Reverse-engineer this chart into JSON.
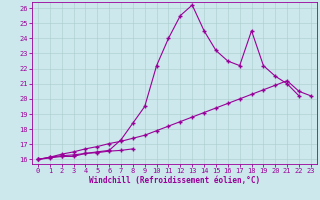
{
  "xlabel": "Windchill (Refroidissement éolien,°C)",
  "bg_color": "#cce8ec",
  "line_color": "#990099",
  "xlim": [
    -0.5,
    23.5
  ],
  "ylim": [
    15.7,
    26.4
  ],
  "xticks": [
    0,
    1,
    2,
    3,
    4,
    5,
    6,
    7,
    8,
    9,
    10,
    11,
    12,
    13,
    14,
    15,
    16,
    17,
    18,
    19,
    20,
    21,
    22,
    23
  ],
  "yticks": [
    16,
    17,
    18,
    19,
    20,
    21,
    22,
    23,
    24,
    25,
    26
  ],
  "series1_x": [
    0,
    1,
    2,
    3,
    4,
    5,
    6,
    7,
    8,
    9,
    10,
    11,
    12,
    13,
    14,
    15,
    16,
    17,
    18,
    19,
    20,
    21,
    22
  ],
  "series1_y": [
    16.0,
    16.1,
    16.2,
    16.2,
    16.4,
    16.5,
    16.6,
    17.3,
    18.4,
    19.5,
    22.2,
    24.0,
    25.5,
    26.2,
    24.5,
    23.2,
    22.5,
    22.2,
    24.5,
    22.2,
    21.5,
    21.0,
    20.2
  ],
  "series2_x": [
    0,
    1,
    2,
    3,
    4,
    5,
    6,
    7,
    8
  ],
  "series2_y": [
    16.0,
    16.15,
    16.25,
    16.3,
    16.4,
    16.45,
    16.55,
    16.6,
    16.7
  ],
  "series3_x": [
    0,
    1,
    2,
    3,
    4,
    5,
    6,
    7,
    8,
    9,
    10,
    11,
    12,
    13,
    14,
    15,
    16,
    17,
    18,
    19,
    20,
    21,
    22,
    23
  ],
  "series3_y": [
    16.0,
    16.15,
    16.35,
    16.5,
    16.7,
    16.85,
    17.05,
    17.2,
    17.4,
    17.6,
    17.9,
    18.2,
    18.5,
    18.8,
    19.1,
    19.4,
    19.7,
    20.0,
    20.3,
    20.6,
    20.9,
    21.2,
    20.5,
    20.2
  ],
  "xlabel_fontsize": 5.5,
  "tick_fontsize": 5.0,
  "markersize": 3.5,
  "linewidth": 0.8
}
